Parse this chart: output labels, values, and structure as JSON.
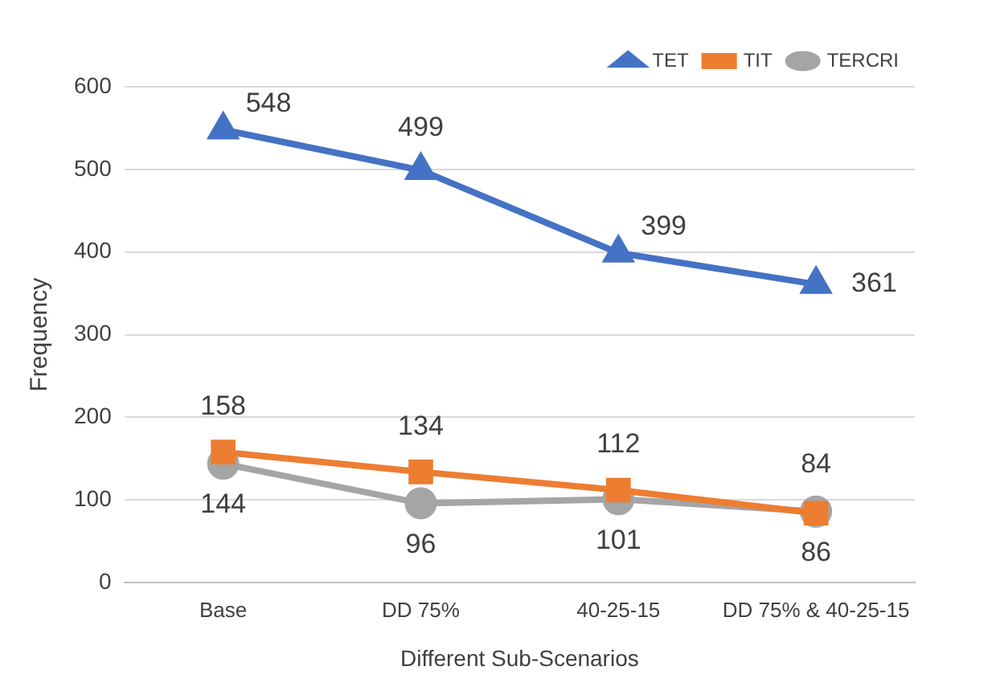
{
  "chart_data": {
    "type": "line",
    "xlabel": "Different Sub-Scenarios",
    "ylabel": "Frequency",
    "categories": [
      "Base",
      "DD 75%",
      "40-25-15",
      "DD 75% & 40-25-15"
    ],
    "series": [
      {
        "name": "TET",
        "color": "#4472c4",
        "marker": "triangle",
        "values": [
          548,
          499,
          399,
          361
        ]
      },
      {
        "name": "TIT",
        "color": "#ed7d31",
        "marker": "square",
        "values": [
          158,
          134,
          112,
          84
        ]
      },
      {
        "name": "TERCRI",
        "color": "#a5a5a5",
        "marker": "circle",
        "values": [
          144,
          96,
          101,
          86
        ]
      }
    ],
    "ylim": [
      0,
      600
    ],
    "yticks": [
      0,
      100,
      200,
      300,
      400,
      500,
      600
    ],
    "grid": "y",
    "legend": "top right",
    "data_labels": true
  }
}
